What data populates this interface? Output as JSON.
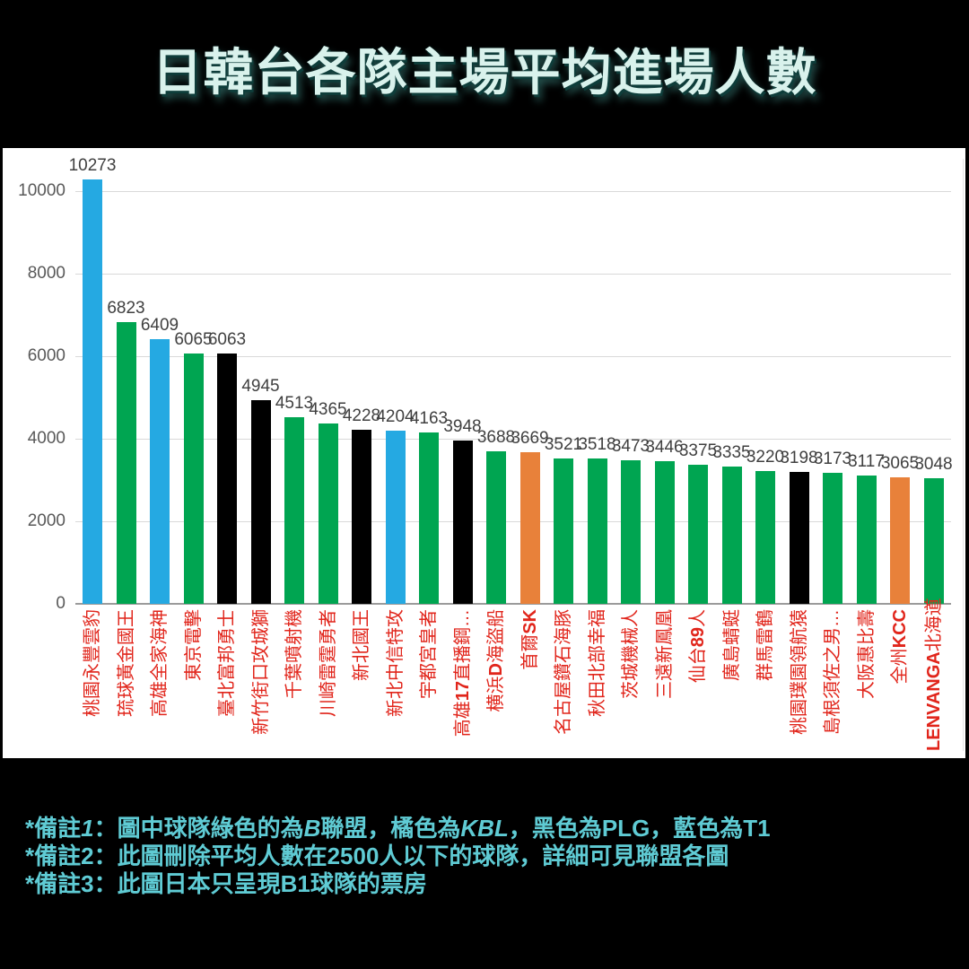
{
  "title": "日韓台各隊主場平均進場人數",
  "chart_data": {
    "type": "bar",
    "title": "日韓台各隊主場平均進場人數",
    "categories": [
      "桃園永豐雲豹",
      "琉球黃金國王",
      "高雄全家海神",
      "東京電擊",
      "臺北富邦勇士",
      "新竹街口攻城獅",
      "千葉噴射機",
      "川崎雷霆勇者",
      "新北國王",
      "新北中信特攻",
      "宇都宮皇者",
      "高雄17直播鋼…",
      "横浜D海盜船",
      "首爾SK",
      "名古屋鑽石海豚",
      "秋田北部幸福",
      "茨城機械人",
      "三遠新鳳凰",
      "仙台89人",
      "廣島蜻蜓",
      "群馬雷鶴",
      "桃園璞園領航猿",
      "島根須佐之男…",
      "大阪惠比壽",
      "全州KCC",
      "LENVANGA北海道"
    ],
    "values": [
      10273,
      6823,
      6409,
      6065,
      6063,
      4945,
      4513,
      4365,
      4228,
      4204,
      4163,
      3948,
      3688,
      3669,
      3521,
      3518,
      3473,
      3446,
      3375,
      3335,
      3220,
      3198,
      3173,
      3117,
      3065,
      3048
    ],
    "leagues": [
      "T1",
      "B",
      "T1",
      "B",
      "PLG",
      "PLG",
      "B",
      "B",
      "PLG",
      "T1",
      "B",
      "PLG",
      "B",
      "KBL",
      "B",
      "B",
      "B",
      "B",
      "B",
      "B",
      "B",
      "PLG",
      "B",
      "B",
      "KBL",
      "B"
    ],
    "league_colors": {
      "B": "#00A551",
      "KBL": "#E8813A",
      "PLG": "#000000",
      "T1": "#25A9E2"
    },
    "xlabel": "",
    "ylabel": "",
    "ylim": [
      0,
      10000
    ],
    "yticks": [
      0,
      2000,
      4000,
      6000,
      8000,
      10000
    ],
    "grid": true,
    "legend_position": "none",
    "bar_labels_shown": true
  },
  "colors": {
    "page_background": "#000000",
    "chart_background": "#FFFFFF",
    "title_text": "#D9F2EC",
    "note_text": "#5FCBD4",
    "category_label": "#E1251B",
    "value_label": "#404040",
    "axis_tick_label": "#595959",
    "gridline": "#D9D9D9",
    "axis_line": "#9B9B9B",
    "plot_border": "#E3E3E3"
  },
  "notes": {
    "lines": [
      {
        "segments": [
          {
            "text": "*備註"
          },
          {
            "text": "1",
            "italic": true
          },
          {
            "text": "：圖中球隊綠色的為"
          },
          {
            "text": "B",
            "italic": true
          },
          {
            "text": "聯盟，橘色為"
          },
          {
            "text": "KBL",
            "italic": true
          },
          {
            "text": "，黑色為PLG，藍色為T1"
          }
        ]
      },
      {
        "segments": [
          {
            "text": "*備註2：此圖刪除平均人數在2500人以下的球隊，詳細可見聯盟各圖"
          }
        ]
      },
      {
        "segments": [
          {
            "text": "*備註3：此圖日本只呈現B1球隊的票房"
          }
        ]
      }
    ]
  }
}
